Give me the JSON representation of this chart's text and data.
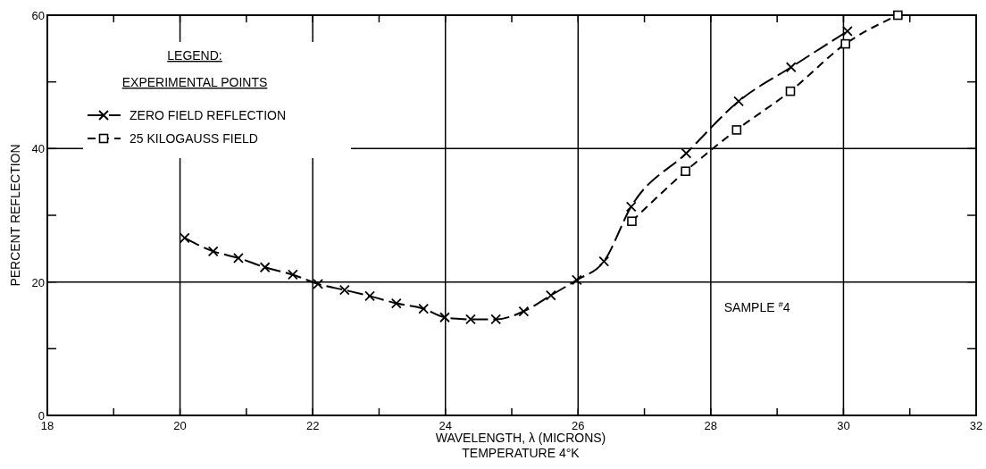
{
  "chart_data": {
    "type": "line",
    "xlabel": "WAVELENGTH, λ  (MICRONS)",
    "ylabel": "PERCENT  REFLECTION",
    "legend_title": "LEGEND:",
    "annotations": [
      "EXPERIMENTAL POINTS",
      "SAMPLE $^{#}$4",
      "TEMPERATURE 4°K"
    ],
    "xlim": [
      18,
      32
    ],
    "ylim": [
      0,
      60
    ],
    "xticks": [
      18,
      {
        "value": 19,
        "label": null
      },
      20,
      {
        "value": 21,
        "label": null
      },
      22,
      {
        "value": 23,
        "label": null
      },
      24,
      {
        "value": 25,
        "label": null
      },
      26,
      {
        "value": 27,
        "label": null
      },
      28,
      {
        "value": 29,
        "label": null
      },
      30,
      {
        "value": 31,
        "label": null
      },
      32
    ],
    "yticks": [
      0,
      {
        "value": 10,
        "label": null
      },
      20,
      {
        "value": 30,
        "label": null
      },
      40,
      {
        "value": 50,
        "label": null
      },
      60
    ],
    "grid": true,
    "legend": "top left",
    "series": [
      {
        "name": "ZERO FIELD REFLECTION",
        "color": "#000000",
        "marker": "cross",
        "line_style": "dashed",
        "x": [
          20.07,
          20.5,
          20.88,
          21.28,
          21.7,
          22.08,
          22.48,
          22.86,
          23.26,
          23.67,
          23.99,
          24.38,
          24.76,
          25.18,
          25.59,
          25.98,
          26.39,
          26.8,
          27.63,
          28.42,
          29.21,
          30.06
        ],
        "values": [
          26.6,
          24.6,
          23.6,
          22.2,
          21.1,
          19.7,
          18.8,
          17.9,
          16.8,
          16.0,
          14.7,
          14.4,
          14.4,
          15.6,
          18.0,
          20.3,
          23.1,
          31.3,
          39.3,
          47.1,
          52.2,
          57.6
        ]
      },
      {
        "name": "25 KILOGAUSS FIELD",
        "color": "#000000",
        "marker": "square",
        "line_style": "dashed",
        "x": [
          26.81,
          27.62,
          28.39,
          29.2,
          30.03,
          30.82
        ],
        "values": [
          29.1,
          36.6,
          42.8,
          48.6,
          55.7,
          60
        ]
      }
    ]
  }
}
